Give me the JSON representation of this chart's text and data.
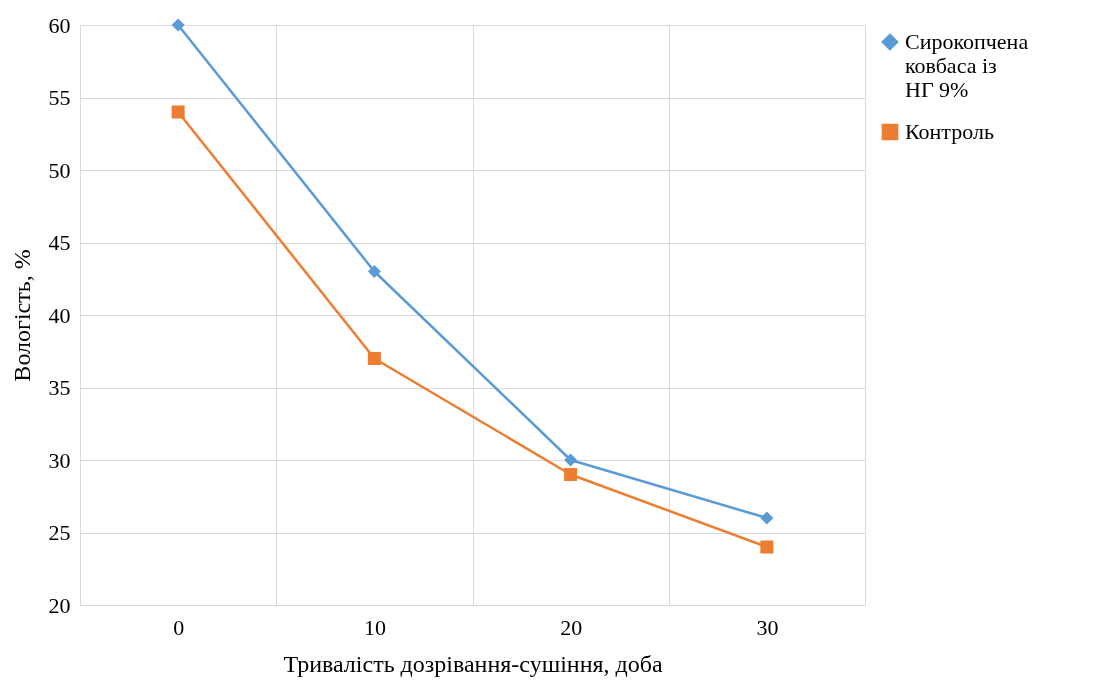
{
  "chart_data": {
    "type": "line",
    "xlabel": "Тривалість дозрівання-сушіння,  доба",
    "ylabel": "Вологість,  %",
    "categories": [
      "0",
      "10",
      "20",
      "30"
    ],
    "series": [
      {
        "name": "Сирокопчена ковбаса із НГ 9%",
        "color": "#5b9bd5",
        "marker": "diamond",
        "values": [
          60,
          43,
          30,
          26
        ]
      },
      {
        "name": "Контроль",
        "color": "#ed7d31",
        "marker": "square",
        "values": [
          54,
          37,
          29,
          24
        ]
      }
    ],
    "ylim": [
      20,
      60
    ],
    "yticks": [
      20,
      25,
      30,
      35,
      40,
      45,
      50,
      55,
      60
    ],
    "grid": true,
    "legend": "right",
    "line_style": "solid"
  }
}
